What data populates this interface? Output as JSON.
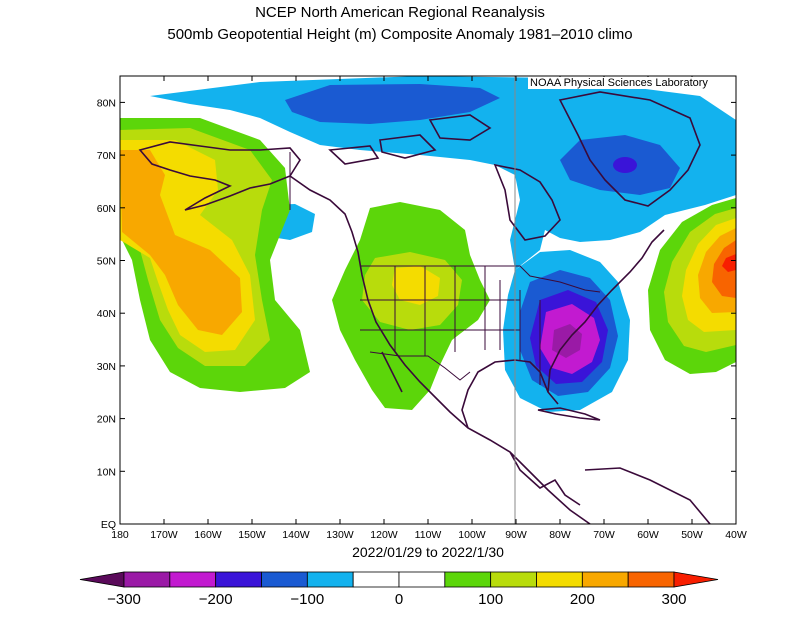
{
  "title_line1": "NCEP North American Regional Reanalysis",
  "title_line2": "500mb Geopotential Height (m) Composite Anomaly 1981–2010 climo",
  "credit": "NOAA Physical Sciences Laboratory",
  "date_range": "2022/01/29 to 2022/1/30",
  "lon_labels": [
    "180",
    "170W",
    "160W",
    "150W",
    "140W",
    "130W",
    "120W",
    "110W",
    "100W",
    "90W",
    "80W",
    "70W",
    "60W",
    "50W",
    "40W"
  ],
  "lat_labels": [
    "EQ",
    "10N",
    "20N",
    "30N",
    "40N",
    "50N",
    "60N",
    "70N",
    "80N"
  ],
  "colorbar": {
    "labels": [
      "−300",
      "−200",
      "−100",
      "0",
      "100",
      "200",
      "300"
    ],
    "colors": [
      "#5a0a5a",
      "#9a1aa6",
      "#c21ad0",
      "#3a14d8",
      "#1a5ad2",
      "#13b2ee",
      "#ffffff",
      "#ffffff",
      "#5cd60a",
      "#b8dc0c",
      "#f4dc00",
      "#f8a800",
      "#f86400",
      "#f81e00"
    ]
  },
  "anomaly_colors": {
    "purple_dark": "#9a1aa6",
    "magenta": "#c21ad0",
    "blue_violet": "#3a14d8",
    "blue": "#1a5ad2",
    "sky": "#13b2ee",
    "green": "#5cd60a",
    "yellow_green": "#b8dc0c",
    "yellow": "#f4dc00",
    "orange": "#f8a800",
    "red_orange": "#f86400",
    "red": "#f81e00"
  }
}
